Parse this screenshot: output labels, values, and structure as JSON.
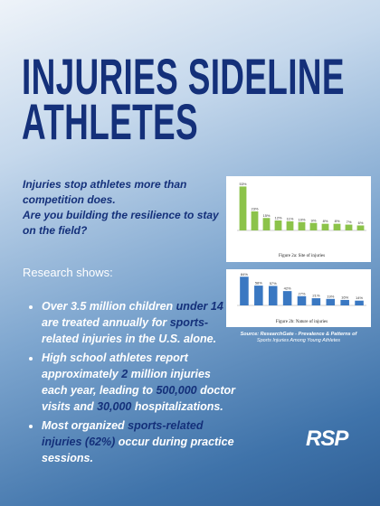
{
  "header": {
    "title_lines": [
      "INJURIES SIDELINE",
      "ATHLETES"
    ]
  },
  "intro": [
    "Injuries stop athletes more than",
    "competition does.",
    "Are you building the resilience to stay",
    "on the field?"
  ],
  "research_label": "Research shows:",
  "bullets": [
    {
      "parts": [
        "Over 3.5 million children ",
        "under 14",
        " are treated annually for ",
        "sports-",
        "related injuries in the U.S. alone."
      ]
    },
    {
      "parts": [
        "High school athletes report approximately ",
        "2",
        " million injuries each year, leading to ",
        "500,000",
        " doctor visits and ",
        "30,000",
        " hospitalizations."
      ]
    },
    {
      "parts": [
        "Most organized ",
        "sports-related injuries (62%)",
        " occur during practice sessions."
      ]
    }
  ],
  "figures": [
    {
      "type": "bar",
      "caption": "Figure 2a: Site of injuries",
      "color": "#8cc34a",
      "ylim": [
        0,
        60
      ],
      "values": [
        53,
        23,
        15,
        12,
        11,
        10,
        9,
        8,
        8,
        7,
        6
      ],
      "value_labels": [
        "53%",
        "23%",
        "15%",
        "12%",
        "11%",
        "10%",
        "9%",
        "8%",
        "8%",
        "7%",
        "6%"
      ]
    },
    {
      "type": "bar",
      "caption": "Figure 2b: Nature of injuries",
      "color": "#3a78c2",
      "ylim": [
        0,
        90
      ],
      "values": [
        84,
        58,
        57,
        42,
        27,
        21,
        19,
        16,
        14
      ],
      "value_labels": [
        "84%",
        "58%",
        "57%",
        "42%",
        "27%",
        "21%",
        "19%",
        "16%",
        "14%"
      ]
    }
  ],
  "source": [
    "Source: ResearchGate - Prevalence & Patterns of",
    "Sports Injuries Among Young Athletes"
  ],
  "logo": "RSP"
}
